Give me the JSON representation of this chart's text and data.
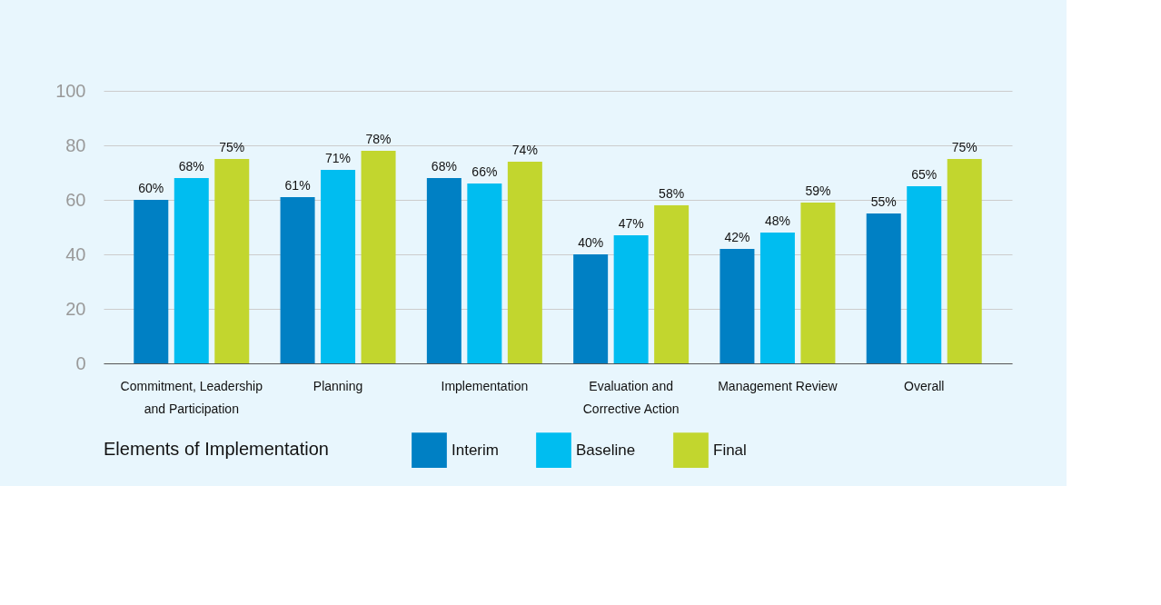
{
  "chart_data": {
    "type": "bar",
    "legend_title": "Elements of Implementation",
    "categories": [
      "Commitment, Leadership and Participation",
      "Planning",
      "Implementation",
      "Evaluation and Corrective Action",
      "Management Review",
      "Overall"
    ],
    "series": [
      {
        "name": "Interim",
        "color": "#0080c4",
        "values": [
          60,
          61,
          68,
          40,
          42,
          55
        ],
        "value_labels": [
          "60%",
          "61%",
          "68%",
          "40%",
          "42%",
          "55%"
        ]
      },
      {
        "name": "Baseline",
        "color": "#00bdf0",
        "values": [
          68,
          71,
          66,
          47,
          48,
          65
        ],
        "value_labels": [
          "68%",
          "71%",
          "66%",
          "47%",
          "48%",
          "65%"
        ]
      },
      {
        "name": "Final",
        "color": "#c2d62e",
        "values": [
          75,
          78,
          74,
          58,
          59,
          75
        ],
        "value_labels": [
          "75%",
          "78%",
          "74%",
          "58%",
          "59%",
          "75%"
        ]
      }
    ],
    "ylim": [
      0,
      100
    ],
    "yticks": [
      0,
      20,
      40,
      60,
      80,
      100
    ],
    "grid": "y",
    "legend": "bottom"
  }
}
